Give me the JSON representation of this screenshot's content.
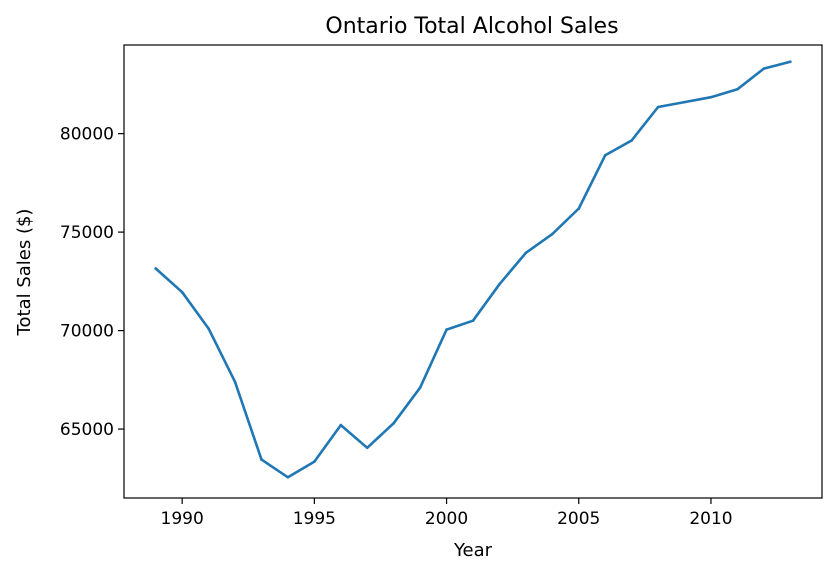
{
  "chart_data": {
    "type": "line",
    "title": "Ontario Total Alcohol Sales",
    "xlabel": "Year",
    "ylabel": "Total Sales ($)",
    "xlim": [
      1987.8,
      2014.2
    ],
    "ylim": [
      61500,
      84500
    ],
    "x_ticks": [
      1990,
      1995,
      2000,
      2005,
      2010
    ],
    "y_ticks": [
      65000,
      70000,
      75000,
      80000
    ],
    "grid": false,
    "legend": "none",
    "series": [
      {
        "color": "#1f77b4",
        "x": [
          1989,
          1990,
          1991,
          1992,
          1993,
          1994,
          1995,
          1996,
          1997,
          1998,
          1999,
          2000,
          2001,
          2002,
          2003,
          2004,
          2005,
          2006,
          2007,
          2008,
          2009,
          2010,
          2011,
          2012,
          2013
        ],
        "y": [
          73150,
          71950,
          70100,
          67400,
          63450,
          62550,
          63350,
          65200,
          64050,
          65300,
          67100,
          70050,
          70500,
          72350,
          73950,
          74900,
          76200,
          78900,
          79650,
          81350,
          81600,
          81850,
          82250,
          83300,
          83650
        ]
      }
    ]
  }
}
